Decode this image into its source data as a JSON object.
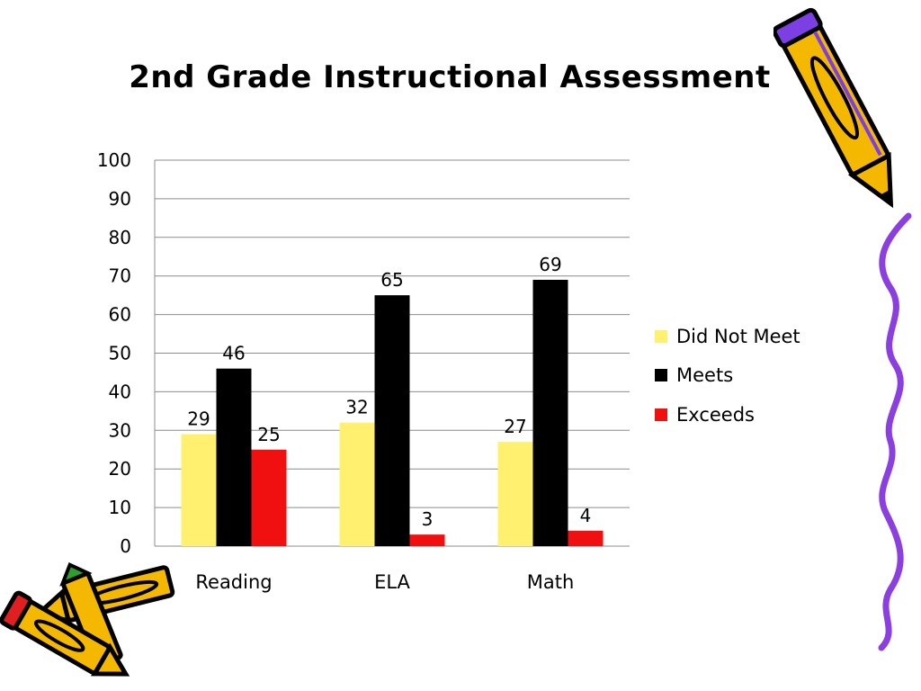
{
  "slide": {
    "title": "2nd Grade Instructional Assessment"
  },
  "chart_data": {
    "type": "bar",
    "title": "",
    "xlabel": "",
    "ylabel": "",
    "categories": [
      "Reading",
      "ELA",
      "Math"
    ],
    "series": [
      {
        "name": "Did Not Meet",
        "values": [
          29,
          32,
          27
        ],
        "color": "#FFF070"
      },
      {
        "name": "Meets",
        "values": [
          46,
          65,
          69
        ],
        "color": "#000000"
      },
      {
        "name": "Exceeds",
        "values": [
          25,
          3,
          4
        ],
        "color": "#F01010"
      }
    ],
    "ylim": [
      0,
      100
    ],
    "yticks": [
      "0",
      "10",
      "20",
      "30",
      "40",
      "50",
      "60",
      "70",
      "80",
      "90",
      "100"
    ],
    "grid": true,
    "legend_position": "right",
    "data_labels": true
  },
  "decorations": {
    "icons": [
      "pencil-icon",
      "pencil-icon",
      "pencil-icon",
      "crayon-icon",
      "squiggle-line-icon"
    ],
    "colors": {
      "pencil_body": "#F5B800",
      "pencil_outline": "#000000",
      "eraser": "#7B3FE4",
      "squiggle": "#8B3FE0"
    }
  }
}
